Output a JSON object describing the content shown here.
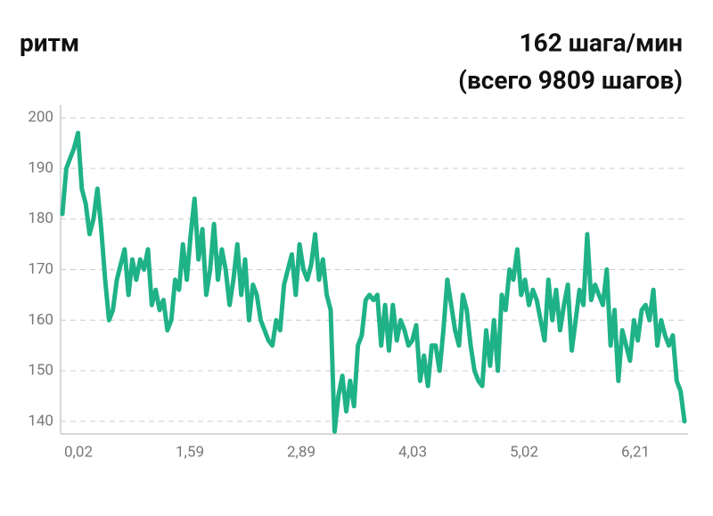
{
  "chart_data": {
    "type": "line",
    "title": "ритм",
    "subtitle": [
      "162 шага/мин",
      "(всего 9809 шагов)"
    ],
    "x_tick_labels": [
      "0,02",
      "1,59",
      "2,89",
      "4,03",
      "5,02",
      "6,21"
    ],
    "series": [
      {
        "color": "#1fb287",
        "values": [
          181,
          190,
          192,
          194,
          197,
          186,
          183,
          177,
          180,
          186,
          178,
          168,
          160,
          162,
          168,
          171,
          174,
          165,
          172,
          168,
          172,
          170,
          174,
          163,
          166,
          162,
          164,
          158,
          160,
          168,
          166,
          175,
          168,
          177,
          184,
          172,
          178,
          165,
          170,
          179,
          168,
          174,
          170,
          163,
          168,
          175,
          165,
          172,
          160,
          167,
          165,
          160,
          158,
          156,
          155,
          160,
          158,
          167,
          170,
          173,
          165,
          175,
          170,
          168,
          171,
          177,
          168,
          172,
          165,
          162,
          138,
          145,
          149,
          142,
          148,
          143,
          155,
          157,
          164,
          165,
          164,
          165,
          155,
          163,
          154,
          163,
          156,
          160,
          158,
          155,
          156,
          159,
          148,
          153,
          147,
          155,
          155,
          150,
          158,
          168,
          163,
          158,
          155,
          165,
          162,
          155,
          150,
          148,
          147,
          158,
          151,
          160,
          150,
          165,
          162,
          170,
          168,
          174,
          165,
          168,
          163,
          166,
          164,
          160,
          156,
          168,
          160,
          166,
          158,
          163,
          167,
          154,
          160,
          166,
          163,
          177,
          164,
          167,
          165,
          163,
          170,
          155,
          162,
          148,
          158,
          155,
          152,
          160,
          156,
          162,
          163,
          160,
          166,
          155,
          160,
          157,
          155,
          157,
          148,
          146,
          140
        ]
      }
    ],
    "ylim": [
      137.5,
      202.5
    ],
    "yticks": [
      140,
      150,
      160,
      170,
      180,
      190,
      200
    ],
    "grid": true
  }
}
